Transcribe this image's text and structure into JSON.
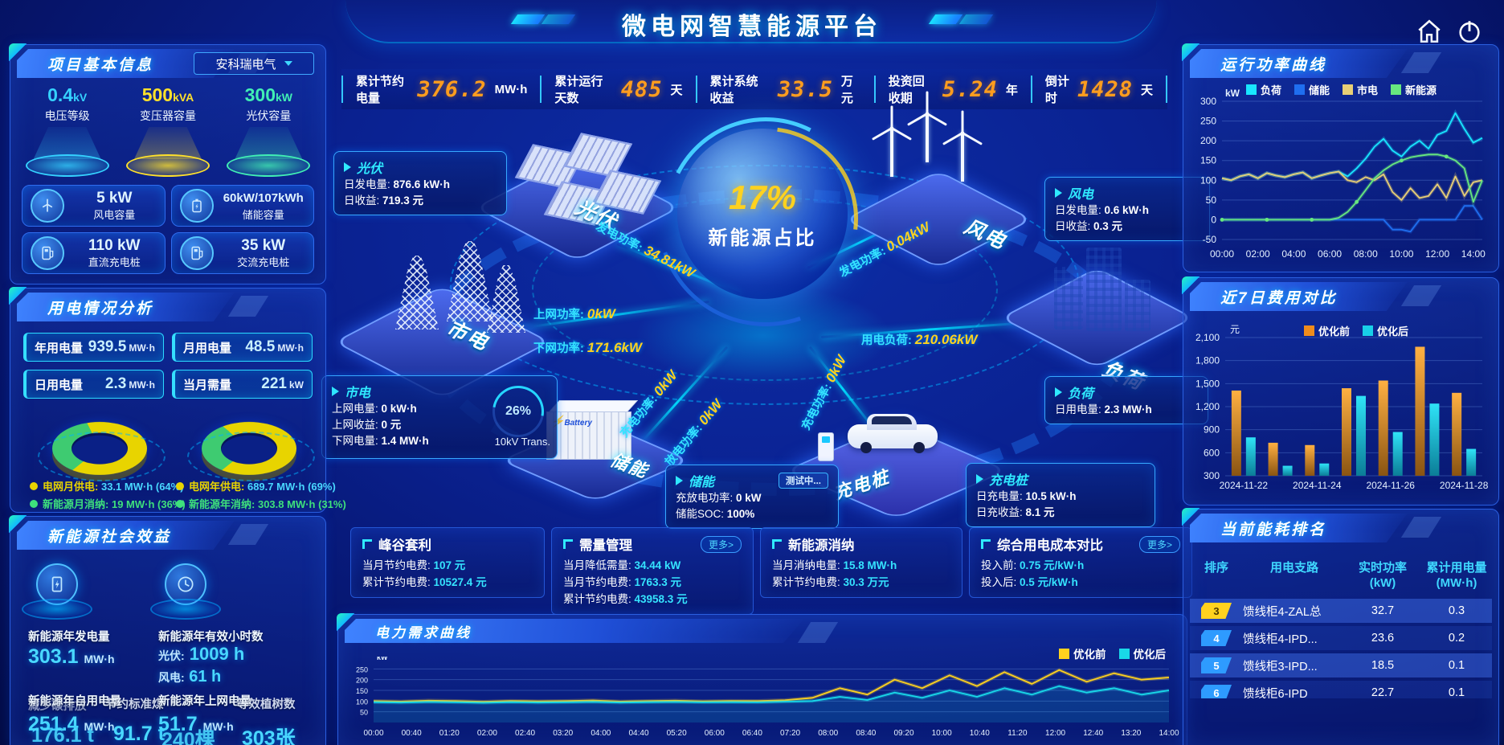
{
  "header": {
    "title": "微电网智慧能源平台"
  },
  "kpi_bar": [
    {
      "label": "累计节约电量",
      "value": "376.2",
      "unit": "MW·h"
    },
    {
      "label": "累计运行天数",
      "value": "485",
      "unit": "天"
    },
    {
      "label": "累计系统收益",
      "value": "33.5",
      "unit": "万元"
    },
    {
      "label": "投资回收期",
      "value": "5.24",
      "unit": "年"
    },
    {
      "label": "倒计时",
      "value": "1428",
      "unit": "天"
    }
  ],
  "project_info": {
    "title": "项目基本信息",
    "company": "安科瑞电气",
    "pedestals": [
      {
        "value": "0.4",
        "unit": "kV",
        "label": "电压等级",
        "color": "#35d2ff"
      },
      {
        "value": "500",
        "unit": "kVA",
        "label": "变压器容量",
        "color": "#ffe12b"
      },
      {
        "value": "300",
        "unit": "kW",
        "label": "光伏容量",
        "color": "#41efb4"
      }
    ],
    "cards": [
      {
        "icon": "wind-turbine-icon",
        "value": "5 kW",
        "label": "风电容量"
      },
      {
        "icon": "battery-icon",
        "value": "60kW/107kWh",
        "label": "储能容量"
      },
      {
        "icon": "dc-charger-icon",
        "value": "110 kW",
        "label": "直流充电桩"
      },
      {
        "icon": "ac-charger-icon",
        "value": "35 kW",
        "label": "交流充电桩"
      }
    ]
  },
  "usage": {
    "title": "用电情况分析",
    "stats": [
      {
        "label": "年用电量",
        "value": "939.5",
        "unit": "MW·h"
      },
      {
        "label": "月用电量",
        "value": "48.5",
        "unit": "MW·h"
      },
      {
        "label": "日用电量",
        "value": "2.3",
        "unit": "MW·h"
      },
      {
        "label": "当月需量",
        "value": "221",
        "unit": "kW"
      }
    ],
    "donuts": [
      {
        "grid_pct": 64,
        "legend": [
          {
            "label": "电网月供电:",
            "value": "33.1 MW·h (64%)",
            "color": "#e8d400"
          },
          {
            "label": "新能源月消纳:",
            "value": "19 MW·h (36%)",
            "color": "#3ee17c"
          }
        ]
      },
      {
        "grid_pct": 69,
        "legend": [
          {
            "label": "电网年供电:",
            "value": "689.7 MW·h (69%)",
            "color": "#e8d400"
          },
          {
            "label": "新能源年消纳:",
            "value": "303.8 MW·h (31%)",
            "color": "#3ee17c"
          }
        ]
      }
    ]
  },
  "benefit": {
    "title": "新能源社会效益",
    "gen_label": "新能源年发电量",
    "gen_value": "303.1",
    "gen_unit": "MW·h",
    "hours_label": "新能源年有效小时数",
    "hours_pv_k": "光伏:",
    "hours_pv_v": "1009 h",
    "hours_wind_k": "风电:",
    "hours_wind_v": "61 h",
    "self_label": "新能源年自用电量",
    "self_overlay1": "节约标准煤",
    "self_overlay2": "减少碳排放",
    "self_value": "251.4",
    "self_unit": "MW·h",
    "self_v2": "176.1 t",
    "self_v3": "91.7 t",
    "grid_label": "新能源年上网电量",
    "grid_overlay1": "等效植树数",
    "grid_value": "51.7",
    "grid_unit": "MW·h",
    "grid_v2": "240棵",
    "grid_v3": "303张"
  },
  "scene": {
    "center": {
      "percent": "17%",
      "label": "新能源占比"
    },
    "gauge": {
      "percent": "26%",
      "label": "10kV Trans."
    },
    "islands": {
      "pv": "光伏",
      "wind": "风电",
      "grid": "市电",
      "storage": "储能",
      "charger": "充电桩",
      "load": "负荷"
    },
    "flows": {
      "pv": {
        "label": "发电功率:",
        "value": "34.81kW"
      },
      "wind": {
        "label": "发电功率:",
        "value": "0.04kW"
      },
      "up": {
        "label": "上网功率:",
        "value": "0kW"
      },
      "down": {
        "label": "下网功率:",
        "value": "171.6kW"
      },
      "charge": {
        "label": "充电功率:",
        "value": "0kW"
      },
      "discharge": {
        "label": "放电功率:",
        "value": "0kW"
      },
      "pile": {
        "label": "充电功率:",
        "value": "0kW"
      },
      "load": {
        "label": "用电负荷:",
        "value": "210.06kW"
      }
    },
    "boxes": {
      "pv": {
        "title": "光伏",
        "rows": [
          [
            "日发电量:",
            "876.6 kW·h"
          ],
          [
            "日收益:",
            "719.3 元"
          ]
        ]
      },
      "grid": {
        "title": "市电",
        "rows": [
          [
            "上网电量:",
            "0 kW·h"
          ],
          [
            "上网收益:",
            "0 元"
          ],
          [
            "下网电量:",
            "1.4 MW·h"
          ]
        ]
      },
      "wind": {
        "title": "风电",
        "rows": [
          [
            "日发电量:",
            "0.6 kW·h"
          ],
          [
            "日收益:",
            "0.3 元"
          ]
        ]
      },
      "load": {
        "title": "负荷",
        "rows": [
          [
            "日用电量:",
            "2.3 MW·h"
          ]
        ]
      },
      "storage": {
        "title": "储能",
        "button": "测试中...",
        "rows": [
          [
            "充放电功率:",
            "0 kW"
          ],
          [
            "储能SOC:",
            "100%"
          ]
        ]
      },
      "charger": {
        "title": "充电桩",
        "rows": [
          [
            "日充电量:",
            "10.5 kW·h"
          ],
          [
            "日充收益:",
            "8.1 元"
          ]
        ]
      }
    }
  },
  "bottom_boxes": [
    {
      "title": "峰谷套利",
      "rows": [
        [
          "当月节约电费:",
          "107 元"
        ],
        [
          "累计节约电费:",
          "10527.4 元"
        ]
      ]
    },
    {
      "title": "需量管理",
      "more": "更多>",
      "rows": [
        [
          "当月降低需量:",
          "34.44 kW"
        ],
        [
          "当月节约电费:",
          "1763.3 元"
        ],
        [
          "累计节约电费:",
          "43958.3 元"
        ]
      ]
    },
    {
      "title": "新能源消纳",
      "rows": [
        [
          "当月消纳电量:",
          "15.8 MW·h"
        ],
        [
          "累计节约电费:",
          "30.3 万元"
        ]
      ]
    },
    {
      "title": "综合用电成本对比",
      "more": "更多>",
      "rows": [
        [
          "投入前:",
          "0.75 元/kW·h"
        ],
        [
          "投入后:",
          "0.5 元/kW·h"
        ]
      ]
    }
  ],
  "ranking": {
    "title": "当前能耗排名",
    "headers": [
      "排序",
      "用电支路",
      "实时功率\n(kW)",
      "累计用电量\n(MW·h)"
    ],
    "rows": [
      {
        "rank": "3",
        "badge": "#ffd21e",
        "text": "#4a3800",
        "branch": "馈线柜4-ZAL总",
        "power": "32.7",
        "energy": "0.3",
        "highlight": true
      },
      {
        "rank": "4",
        "badge": "#2e9bff",
        "text": "#ffffff",
        "branch": "馈线柜4-IPD...",
        "power": "23.6",
        "energy": "0.2",
        "highlight": false
      },
      {
        "rank": "5",
        "badge": "#2e9bff",
        "text": "#ffffff",
        "branch": "馈线柜3-IPD...",
        "power": "18.5",
        "energy": "0.1",
        "highlight": true
      },
      {
        "rank": "6",
        "badge": "#2e9bff",
        "text": "#ffffff",
        "branch": "馈线柜6-IPD",
        "power": "22.7",
        "energy": "0.1",
        "highlight": false
      }
    ]
  },
  "chart_data": [
    {
      "id": "power_curve",
      "type": "line",
      "title": "运行功率曲线",
      "ylabel": "kW",
      "ylim": [
        -50,
        300
      ],
      "yticks": [
        300,
        250,
        200,
        150,
        100,
        50,
        0,
        -50
      ],
      "x_start_hour": 0,
      "x_step_hour": 0.5,
      "x_max_hour": 14.5,
      "xticks": [
        "00:00",
        "02:00",
        "04:00",
        "06:00",
        "08:00",
        "10:00",
        "12:00",
        "14:00"
      ],
      "xtick_hours": [
        0,
        2,
        4,
        6,
        8,
        10,
        12,
        14
      ],
      "legend_position": "top",
      "series": [
        {
          "name": "负荷",
          "color": "#19e6ff",
          "values": [
            105,
            100,
            110,
            115,
            105,
            118,
            112,
            108,
            115,
            120,
            105,
            112,
            118,
            122,
            110,
            130,
            155,
            185,
            205,
            175,
            160,
            185,
            200,
            180,
            215,
            225,
            270,
            230,
            195,
            207
          ]
        },
        {
          "name": "储能",
          "color": "#1f6ef0",
          "values": [
            0,
            0,
            0,
            0,
            0,
            0,
            0,
            0,
            0,
            0,
            0,
            0,
            0,
            0,
            0,
            0,
            0,
            0,
            0,
            -25,
            -25,
            -30,
            0,
            0,
            0,
            0,
            0,
            35,
            35,
            0
          ]
        },
        {
          "name": "市电",
          "color": "#e8cf76",
          "values": [
            105,
            100,
            110,
            115,
            105,
            118,
            112,
            108,
            115,
            120,
            105,
            112,
            118,
            122,
            100,
            95,
            108,
            100,
            115,
            70,
            50,
            80,
            55,
            60,
            90,
            55,
            110,
            60,
            95,
            100
          ]
        },
        {
          "name": "新能源",
          "color": "#67e87f",
          "values": [
            0,
            0,
            0,
            0,
            0,
            0,
            0,
            0,
            0,
            0,
            0,
            0,
            0,
            5,
            20,
            45,
            75,
            105,
            125,
            140,
            150,
            158,
            162,
            165,
            165,
            160,
            150,
            130,
            45,
            100
          ]
        }
      ]
    },
    {
      "id": "cost_compare",
      "type": "bar",
      "title": "近7日费用对比",
      "ylabel": "元",
      "ylim": [
        300,
        2100
      ],
      "yticks": [
        "2,100",
        "1,800",
        "1,500",
        "1,200",
        "900",
        "600",
        "300"
      ],
      "categories": [
        "2024-11-22",
        "2024-11-23",
        "2024-11-24",
        "2024-11-25",
        "2024-11-26",
        "2024-11-27",
        "2024-11-28"
      ],
      "xtick_labels": [
        "2024-11-22",
        "2024-11-24",
        "2024-11-26",
        "2024-11-28"
      ],
      "legend_position": "top",
      "series": [
        {
          "name": "优化前",
          "color": "#f08c1c",
          "values": [
            1410,
            730,
            700,
            1440,
            1540,
            1980,
            1380
          ]
        },
        {
          "name": "优化后",
          "color": "#18cfe8",
          "values": [
            800,
            430,
            460,
            1340,
            870,
            1240,
            650
          ]
        }
      ]
    },
    {
      "id": "demand_curve",
      "type": "line",
      "title": "电力需求曲线",
      "ylabel": "kW",
      "ylim": [
        0,
        270
      ],
      "yticks": [
        250,
        200,
        150,
        100,
        50
      ],
      "x_start_hour": 0,
      "x_step_hour": 0.5,
      "x_max_hour": 14.5,
      "xticks": [
        "00:00",
        "00:40",
        "01:20",
        "02:00",
        "02:40",
        "03:20",
        "04:00",
        "04:40",
        "05:20",
        "06:00",
        "06:40",
        "07:20",
        "08:00",
        "08:40",
        "09:20",
        "10:00",
        "10:40",
        "11:20",
        "12:00",
        "12:40",
        "13:20",
        "14:00"
      ],
      "legend_position": "top-right",
      "series": [
        {
          "name": "优化前",
          "color": "#ffd21e",
          "values": [
            100,
            98,
            102,
            100,
            97,
            101,
            99,
            100,
            103,
            98,
            100,
            102,
            99,
            101,
            100,
            104,
            115,
            160,
            130,
            200,
            160,
            220,
            170,
            235,
            180,
            245,
            190,
            230,
            200,
            210
          ]
        },
        {
          "name": "优化后",
          "color": "#19d8e8",
          "fill": true,
          "values": [
            95,
            93,
            96,
            94,
            92,
            95,
            93,
            94,
            96,
            93,
            95,
            96,
            94,
            95,
            94,
            97,
            100,
            120,
            105,
            140,
            115,
            150,
            120,
            160,
            130,
            170,
            140,
            160,
            130,
            150
          ]
        }
      ]
    }
  ]
}
